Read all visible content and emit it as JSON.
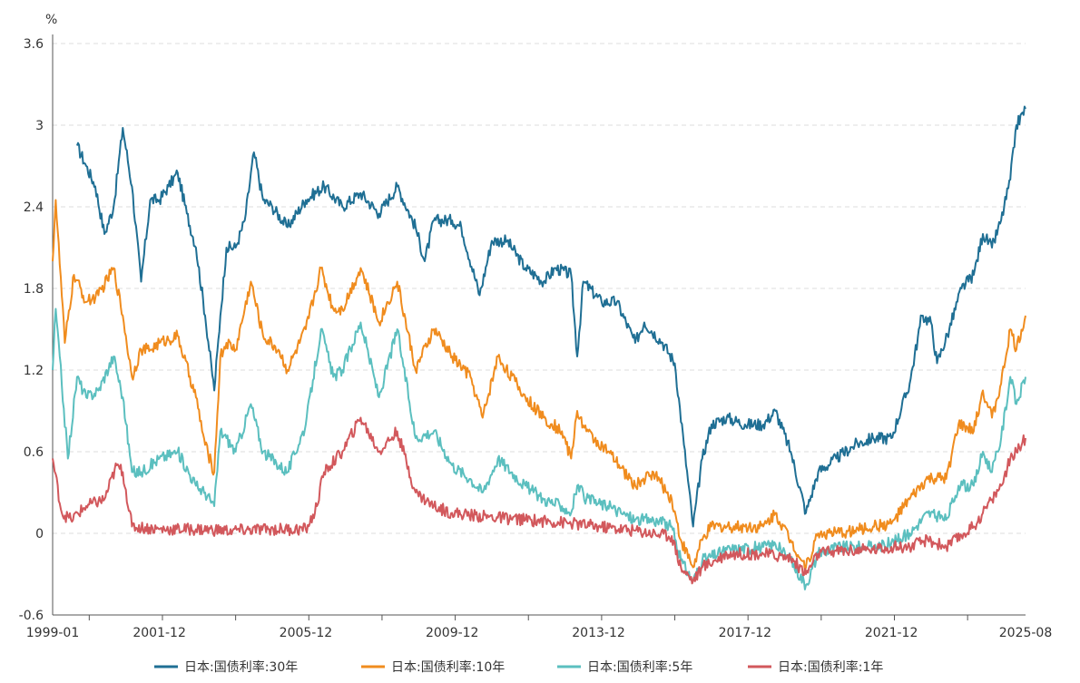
{
  "chart_data": {
    "type": "line",
    "title": "",
    "y_unit": "%",
    "ylim": [
      -0.6,
      3.6
    ],
    "y_ticks": [
      "3.6",
      "3",
      "2.4",
      "1.8",
      "1.2",
      "0.6",
      "0",
      "-0.6"
    ],
    "y_tick_values": [
      3.6,
      3.0,
      2.4,
      1.8,
      1.2,
      0.6,
      0.0,
      -0.6
    ],
    "x_range": [
      "1999-01",
      "2025-08"
    ],
    "x_ticks": [
      "1999-01",
      "2001-12",
      "2005-12",
      "2009-12",
      "2013-12",
      "2017-12",
      "2021-12",
      "2025-08"
    ],
    "x_tick_dates": [
      "1999-01",
      "2001-12",
      "2005-12",
      "2009-12",
      "2013-12",
      "2017-12",
      "2021-12",
      "2025-08"
    ],
    "grid": "horizontal-dashed",
    "legend_position": "bottom-center",
    "series": [
      {
        "name": "日本:国债利率:30年",
        "color": "#1f6f94",
        "points": [
          [
            "1999-09",
            2.85
          ],
          [
            "1999-12",
            2.7
          ],
          [
            "2000-03",
            2.55
          ],
          [
            "2000-06",
            2.2
          ],
          [
            "2000-09",
            2.4
          ],
          [
            "2000-12",
            2.98
          ],
          [
            "2001-03",
            2.55
          ],
          [
            "2001-06",
            1.85
          ],
          [
            "2001-09",
            2.45
          ],
          [
            "2001-12",
            2.45
          ],
          [
            "2002-03",
            2.55
          ],
          [
            "2002-06",
            2.65
          ],
          [
            "2002-09",
            2.35
          ],
          [
            "2002-12",
            2.1
          ],
          [
            "2003-03",
            1.6
          ],
          [
            "2003-06",
            1.05
          ],
          [
            "2003-08",
            1.6
          ],
          [
            "2003-10",
            2.1
          ],
          [
            "2004-01",
            2.1
          ],
          [
            "2004-04",
            2.3
          ],
          [
            "2004-07",
            2.8
          ],
          [
            "2004-10",
            2.45
          ],
          [
            "2005-01",
            2.4
          ],
          [
            "2005-06",
            2.25
          ],
          [
            "2005-12",
            2.45
          ],
          [
            "2006-06",
            2.55
          ],
          [
            "2006-12",
            2.4
          ],
          [
            "2007-06",
            2.5
          ],
          [
            "2007-12",
            2.35
          ],
          [
            "2008-06",
            2.55
          ],
          [
            "2008-12",
            2.25
          ],
          [
            "2009-03",
            2.0
          ],
          [
            "2009-06",
            2.3
          ],
          [
            "2009-12",
            2.3
          ],
          [
            "2010-03",
            2.25
          ],
          [
            "2010-09",
            1.75
          ],
          [
            "2011-01",
            2.15
          ],
          [
            "2011-06",
            2.15
          ],
          [
            "2011-12",
            1.95
          ],
          [
            "2012-06",
            1.85
          ],
          [
            "2012-10",
            1.95
          ],
          [
            "2013-03",
            1.9
          ],
          [
            "2013-05",
            1.3
          ],
          [
            "2013-07",
            1.85
          ],
          [
            "2014-01",
            1.7
          ],
          [
            "2014-06",
            1.7
          ],
          [
            "2014-12",
            1.4
          ],
          [
            "2015-03",
            1.55
          ],
          [
            "2015-09",
            1.4
          ],
          [
            "2016-01",
            1.25
          ],
          [
            "2016-04",
            0.65
          ],
          [
            "2016-07",
            0.05
          ],
          [
            "2016-10",
            0.55
          ],
          [
            "2017-01",
            0.8
          ],
          [
            "2017-06",
            0.85
          ],
          [
            "2017-12",
            0.8
          ],
          [
            "2018-06",
            0.8
          ],
          [
            "2018-10",
            0.9
          ],
          [
            "2019-03",
            0.6
          ],
          [
            "2019-08",
            0.15
          ],
          [
            "2019-12",
            0.45
          ],
          [
            "2020-06",
            0.55
          ],
          [
            "2020-12",
            0.65
          ],
          [
            "2021-06",
            0.7
          ],
          [
            "2021-12",
            0.7
          ],
          [
            "2022-06",
            1.1
          ],
          [
            "2022-10",
            1.6
          ],
          [
            "2023-01",
            1.55
          ],
          [
            "2023-03",
            1.25
          ],
          [
            "2023-07",
            1.5
          ],
          [
            "2023-11",
            1.8
          ],
          [
            "2024-03",
            1.9
          ],
          [
            "2024-06",
            2.2
          ],
          [
            "2024-09",
            2.1
          ],
          [
            "2024-12",
            2.3
          ],
          [
            "2025-03",
            2.6
          ],
          [
            "2025-05",
            3.0
          ],
          [
            "2025-08",
            3.12
          ]
        ]
      },
      {
        "name": "日本:国债利率:10年",
        "color": "#f08c1e",
        "points": [
          [
            "1999-01",
            2.0
          ],
          [
            "1999-02",
            2.45
          ],
          [
            "1999-05",
            1.4
          ],
          [
            "1999-08",
            1.9
          ],
          [
            "1999-12",
            1.7
          ],
          [
            "2000-04",
            1.75
          ],
          [
            "2000-09",
            1.95
          ],
          [
            "2000-12",
            1.6
          ],
          [
            "2001-03",
            1.15
          ],
          [
            "2001-06",
            1.35
          ],
          [
            "2001-09",
            1.35
          ],
          [
            "2001-12",
            1.4
          ],
          [
            "2002-06",
            1.45
          ],
          [
            "2002-12",
            1.0
          ],
          [
            "2003-03",
            0.65
          ],
          [
            "2003-06",
            0.45
          ],
          [
            "2003-08",
            1.3
          ],
          [
            "2003-10",
            1.4
          ],
          [
            "2004-01",
            1.35
          ],
          [
            "2004-06",
            1.85
          ],
          [
            "2004-10",
            1.45
          ],
          [
            "2005-03",
            1.35
          ],
          [
            "2005-06",
            1.2
          ],
          [
            "2005-12",
            1.5
          ],
          [
            "2006-05",
            1.95
          ],
          [
            "2006-09",
            1.65
          ],
          [
            "2006-12",
            1.65
          ],
          [
            "2007-06",
            1.95
          ],
          [
            "2007-12",
            1.55
          ],
          [
            "2008-06",
            1.85
          ],
          [
            "2008-12",
            1.2
          ],
          [
            "2009-06",
            1.5
          ],
          [
            "2009-12",
            1.3
          ],
          [
            "2010-06",
            1.15
          ],
          [
            "2010-10",
            0.85
          ],
          [
            "2011-03",
            1.3
          ],
          [
            "2011-12",
            1.0
          ],
          [
            "2012-06",
            0.85
          ],
          [
            "2012-12",
            0.75
          ],
          [
            "2013-03",
            0.55
          ],
          [
            "2013-05",
            0.9
          ],
          [
            "2013-08",
            0.75
          ],
          [
            "2014-03",
            0.6
          ],
          [
            "2014-12",
            0.35
          ],
          [
            "2015-06",
            0.45
          ],
          [
            "2015-12",
            0.25
          ],
          [
            "2016-03",
            -0.05
          ],
          [
            "2016-07",
            -0.25
          ],
          [
            "2016-10",
            -0.05
          ],
          [
            "2017-01",
            0.05
          ],
          [
            "2017-12",
            0.05
          ],
          [
            "2018-06",
            0.05
          ],
          [
            "2018-10",
            0.15
          ],
          [
            "2019-03",
            -0.05
          ],
          [
            "2019-08",
            -0.25
          ],
          [
            "2019-12",
            0.0
          ],
          [
            "2020-06",
            0.0
          ],
          [
            "2020-12",
            0.02
          ],
          [
            "2021-06",
            0.05
          ],
          [
            "2021-12",
            0.07
          ],
          [
            "2022-06",
            0.25
          ],
          [
            "2022-12",
            0.4
          ],
          [
            "2023-06",
            0.4
          ],
          [
            "2023-10",
            0.8
          ],
          [
            "2024-03",
            0.75
          ],
          [
            "2024-06",
            1.05
          ],
          [
            "2024-09",
            0.85
          ],
          [
            "2024-12",
            1.1
          ],
          [
            "2025-03",
            1.5
          ],
          [
            "2025-05",
            1.35
          ],
          [
            "2025-08",
            1.6
          ]
        ]
      },
      {
        "name": "日本:国债利率:5年",
        "color": "#5bbfbf",
        "points": [
          [
            "1999-01",
            1.2
          ],
          [
            "1999-02",
            1.65
          ],
          [
            "1999-06",
            0.55
          ],
          [
            "1999-09",
            1.15
          ],
          [
            "1999-12",
            1.0
          ],
          [
            "2000-04",
            1.05
          ],
          [
            "2000-09",
            1.3
          ],
          [
            "2000-12",
            1.0
          ],
          [
            "2001-03",
            0.45
          ],
          [
            "2001-06",
            0.45
          ],
          [
            "2001-12",
            0.55
          ],
          [
            "2002-06",
            0.6
          ],
          [
            "2002-12",
            0.35
          ],
          [
            "2003-03",
            0.3
          ],
          [
            "2003-06",
            0.2
          ],
          [
            "2003-08",
            0.75
          ],
          [
            "2003-10",
            0.7
          ],
          [
            "2004-01",
            0.6
          ],
          [
            "2004-06",
            0.95
          ],
          [
            "2004-10",
            0.6
          ],
          [
            "2005-06",
            0.45
          ],
          [
            "2005-12",
            0.8
          ],
          [
            "2006-05",
            1.5
          ],
          [
            "2006-09",
            1.15
          ],
          [
            "2006-12",
            1.2
          ],
          [
            "2007-06",
            1.55
          ],
          [
            "2007-12",
            1.0
          ],
          [
            "2008-06",
            1.5
          ],
          [
            "2008-12",
            0.7
          ],
          [
            "2009-06",
            0.75
          ],
          [
            "2009-12",
            0.5
          ],
          [
            "2010-06",
            0.4
          ],
          [
            "2010-10",
            0.3
          ],
          [
            "2011-03",
            0.55
          ],
          [
            "2011-12",
            0.35
          ],
          [
            "2012-06",
            0.25
          ],
          [
            "2012-12",
            0.2
          ],
          [
            "2013-03",
            0.15
          ],
          [
            "2013-05",
            0.35
          ],
          [
            "2013-08",
            0.25
          ],
          [
            "2014-03",
            0.2
          ],
          [
            "2014-12",
            0.1
          ],
          [
            "2015-06",
            0.1
          ],
          [
            "2015-12",
            0.05
          ],
          [
            "2016-03",
            -0.2
          ],
          [
            "2016-07",
            -0.35
          ],
          [
            "2016-10",
            -0.2
          ],
          [
            "2017-06",
            -0.12
          ],
          [
            "2018-06",
            -0.1
          ],
          [
            "2018-10",
            -0.08
          ],
          [
            "2019-03",
            -0.2
          ],
          [
            "2019-08",
            -0.38
          ],
          [
            "2019-12",
            -0.15
          ],
          [
            "2020-06",
            -0.1
          ],
          [
            "2021-06",
            -0.1
          ],
          [
            "2021-12",
            -0.07
          ],
          [
            "2022-06",
            0.0
          ],
          [
            "2022-12",
            0.15
          ],
          [
            "2023-06",
            0.1
          ],
          [
            "2023-10",
            0.35
          ],
          [
            "2024-03",
            0.35
          ],
          [
            "2024-06",
            0.6
          ],
          [
            "2024-09",
            0.45
          ],
          [
            "2024-12",
            0.7
          ],
          [
            "2025-03",
            1.15
          ],
          [
            "2025-05",
            0.95
          ],
          [
            "2025-08",
            1.15
          ]
        ]
      },
      {
        "name": "日本:国债利率:1年",
        "color": "#d2585c",
        "points": [
          [
            "1999-01",
            0.55
          ],
          [
            "1999-04",
            0.15
          ],
          [
            "1999-07",
            0.1
          ],
          [
            "1999-12",
            0.2
          ],
          [
            "2000-06",
            0.25
          ],
          [
            "2000-10",
            0.5
          ],
          [
            "2000-12",
            0.45
          ],
          [
            "2001-03",
            0.05
          ],
          [
            "2001-12",
            0.03
          ],
          [
            "2002-12",
            0.03
          ],
          [
            "2003-12",
            0.02
          ],
          [
            "2004-12",
            0.03
          ],
          [
            "2005-12",
            0.03
          ],
          [
            "2006-03",
            0.15
          ],
          [
            "2006-06",
            0.45
          ],
          [
            "2006-12",
            0.6
          ],
          [
            "2007-06",
            0.85
          ],
          [
            "2007-12",
            0.6
          ],
          [
            "2008-06",
            0.75
          ],
          [
            "2008-12",
            0.3
          ],
          [
            "2009-06",
            0.2
          ],
          [
            "2009-12",
            0.15
          ],
          [
            "2010-12",
            0.12
          ],
          [
            "2011-12",
            0.1
          ],
          [
            "2012-12",
            0.08
          ],
          [
            "2013-12",
            0.05
          ],
          [
            "2014-12",
            0.02
          ],
          [
            "2015-12",
            -0.02
          ],
          [
            "2016-03",
            -0.25
          ],
          [
            "2016-07",
            -0.35
          ],
          [
            "2016-10",
            -0.25
          ],
          [
            "2017-06",
            -0.15
          ],
          [
            "2018-06",
            -0.15
          ],
          [
            "2019-03",
            -0.18
          ],
          [
            "2019-08",
            -0.3
          ],
          [
            "2019-12",
            -0.15
          ],
          [
            "2020-06",
            -0.13
          ],
          [
            "2021-06",
            -0.12
          ],
          [
            "2021-12",
            -0.1
          ],
          [
            "2022-06",
            -0.1
          ],
          [
            "2022-12",
            -0.05
          ],
          [
            "2023-06",
            -0.1
          ],
          [
            "2023-12",
            0.0
          ],
          [
            "2024-03",
            0.05
          ],
          [
            "2024-06",
            0.15
          ],
          [
            "2024-09",
            0.25
          ],
          [
            "2024-12",
            0.35
          ],
          [
            "2025-03",
            0.55
          ],
          [
            "2025-05",
            0.6
          ],
          [
            "2025-08",
            0.7
          ]
        ]
      }
    ]
  }
}
